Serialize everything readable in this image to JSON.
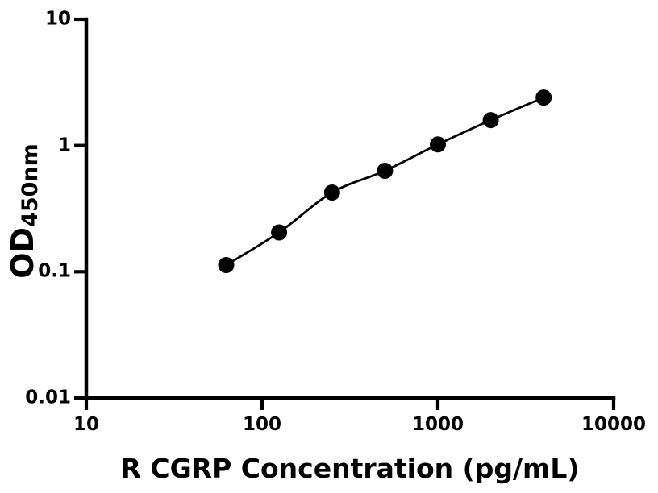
{
  "figure": {
    "background_color": "#ffffff",
    "axis_color": "#000000",
    "curve_color": "#000000",
    "marker_color": "#000000"
  },
  "chart_data": {
    "type": "scatter",
    "subtype": "elisa-standard-curve",
    "title": "",
    "xlabel": "R CGRP Concentration (pg/mL)",
    "ylabel_main": "OD",
    "ylabel_sub": "450nm",
    "xscale": "log",
    "yscale": "log",
    "xlim": [
      10,
      10000
    ],
    "ylim": [
      0.01,
      10
    ],
    "x_ticks": [
      10,
      100,
      1000,
      10000
    ],
    "x_tick_labels": [
      "10",
      "100",
      "1000",
      "10000"
    ],
    "y_ticks": [
      0.01,
      0.1,
      1,
      10
    ],
    "y_tick_labels": [
      "0.01",
      "0.1",
      "1",
      "10"
    ],
    "grid": false,
    "legend_position": "none",
    "marker_style": "filled-circle",
    "line_style": "smooth",
    "x": [
      62.5,
      125,
      250,
      500,
      1000,
      2000,
      4000
    ],
    "y": [
      0.113,
      0.205,
      0.424,
      0.631,
      1.02,
      1.59,
      2.4
    ]
  }
}
